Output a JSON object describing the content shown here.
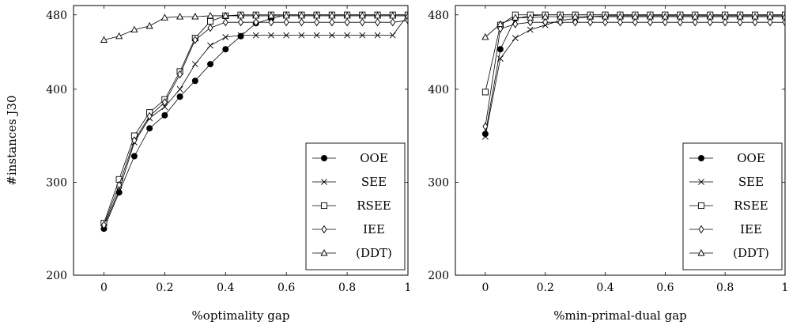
{
  "chart_data": [
    {
      "type": "line",
      "xlabel": "%optimality gap",
      "ylabel": "#instances J30",
      "xlim": [
        -0.1,
        1.0
      ],
      "ylim": [
        200,
        490
      ],
      "xticks": [
        "0",
        "0.2",
        "0.4",
        "0.6",
        "0.8",
        "1"
      ],
      "yticks": [
        "200",
        "300",
        "400",
        "480"
      ],
      "legend_position": "bottom-right",
      "series": [
        {
          "name": "OOE",
          "marker": "filled-circle",
          "x": [
            0,
            0.05,
            0.1,
            0.15,
            0.2,
            0.25,
            0.3,
            0.35,
            0.4,
            0.45,
            0.5,
            0.55,
            0.6,
            0.65,
            0.7,
            0.75,
            0.8,
            0.85,
            0.9,
            0.95,
            1
          ],
          "y": [
            250,
            289,
            328,
            358,
            372,
            392,
            409,
            427,
            443,
            457,
            471,
            476,
            480,
            480,
            480,
            480,
            480,
            480,
            480,
            480,
            480
          ]
        },
        {
          "name": "SEE",
          "marker": "cross",
          "x": [
            0,
            0.05,
            0.1,
            0.15,
            0.2,
            0.25,
            0.3,
            0.35,
            0.4,
            0.45,
            0.5,
            0.55,
            0.6,
            0.65,
            0.7,
            0.75,
            0.8,
            0.85,
            0.9,
            0.95,
            1
          ],
          "y": [
            253,
            291,
            343,
            369,
            381,
            400,
            427,
            447,
            456,
            458,
            458,
            458,
            458,
            458,
            458,
            458,
            458,
            458,
            458,
            458,
            480
          ]
        },
        {
          "name": "RSEE",
          "marker": "open-square",
          "x": [
            0,
            0.05,
            0.1,
            0.15,
            0.2,
            0.25,
            0.3,
            0.35,
            0.4,
            0.45,
            0.5,
            0.55,
            0.6,
            0.65,
            0.7,
            0.75,
            0.8,
            0.85,
            0.9,
            0.95,
            1
          ],
          "y": [
            256,
            303,
            350,
            375,
            389,
            419,
            455,
            473,
            479,
            480,
            480,
            480,
            480,
            480,
            480,
            480,
            480,
            480,
            480,
            480,
            480
          ]
        },
        {
          "name": "IEE",
          "marker": "open-diamond",
          "x": [
            0,
            0.05,
            0.1,
            0.15,
            0.2,
            0.25,
            0.3,
            0.35,
            0.4,
            0.45,
            0.5,
            0.55,
            0.6,
            0.65,
            0.7,
            0.75,
            0.8,
            0.85,
            0.9,
            0.95,
            1
          ],
          "y": [
            254,
            297,
            345,
            371,
            386,
            416,
            453,
            466,
            472,
            472,
            472,
            472,
            472,
            472,
            472,
            472,
            472,
            472,
            472,
            472,
            474
          ]
        },
        {
          "name": "(DDT)",
          "marker": "open-triangle",
          "x": [
            0,
            0.05,
            0.1,
            0.15,
            0.2,
            0.25,
            0.3,
            0.35,
            0.4,
            0.45,
            0.5,
            0.55,
            0.6,
            0.65,
            0.7,
            0.75,
            0.8,
            0.85,
            0.9,
            0.95,
            1
          ],
          "y": [
            453,
            457,
            464,
            468,
            477,
            478,
            478,
            479,
            479,
            479,
            479,
            479,
            479,
            479,
            479,
            479,
            479,
            479,
            479,
            479,
            479
          ]
        }
      ]
    },
    {
      "type": "line",
      "xlabel": "%min-primal-dual gap",
      "ylabel": "",
      "xlim": [
        -0.1,
        1.0
      ],
      "ylim": [
        200,
        490
      ],
      "xticks": [
        "0",
        "0.2",
        "0.4",
        "0.6",
        "0.8",
        "1"
      ],
      "yticks": [
        "200",
        "300",
        "400",
        "480"
      ],
      "legend_position": "bottom-right",
      "series": [
        {
          "name": "OOE",
          "marker": "filled-circle",
          "x": [
            0,
            0.05,
            0.1,
            0.15,
            0.2,
            0.25,
            0.3,
            0.35,
            0.4,
            0.45,
            0.5,
            0.55,
            0.6,
            0.65,
            0.7,
            0.75,
            0.8,
            0.85,
            0.9,
            0.95,
            1
          ],
          "y": [
            352,
            443,
            476,
            479,
            480,
            480,
            480,
            480,
            480,
            480,
            480,
            480,
            480,
            480,
            480,
            480,
            480,
            480,
            480,
            480,
            480
          ]
        },
        {
          "name": "SEE",
          "marker": "cross",
          "x": [
            0,
            0.05,
            0.1,
            0.15,
            0.2,
            0.25,
            0.3,
            0.35,
            0.4,
            0.45,
            0.5,
            0.55,
            0.6,
            0.65,
            0.7,
            0.75,
            0.8,
            0.85,
            0.9,
            0.95,
            1
          ],
          "y": [
            349,
            433,
            455,
            464,
            469,
            474,
            476,
            478,
            479,
            479,
            479,
            479,
            479,
            479,
            479,
            479,
            479,
            479,
            479,
            479,
            479
          ]
        },
        {
          "name": "RSEE",
          "marker": "open-square",
          "x": [
            0,
            0.05,
            0.1,
            0.15,
            0.2,
            0.25,
            0.3,
            0.35,
            0.4,
            0.45,
            0.5,
            0.55,
            0.6,
            0.65,
            0.7,
            0.75,
            0.8,
            0.85,
            0.9,
            0.95,
            1
          ],
          "y": [
            397,
            469,
            480,
            480,
            480,
            480,
            480,
            480,
            480,
            480,
            480,
            480,
            480,
            480,
            480,
            480,
            480,
            480,
            480,
            480,
            480
          ]
        },
        {
          "name": "IEE",
          "marker": "open-diamond",
          "x": [
            0,
            0.05,
            0.1,
            0.15,
            0.2,
            0.25,
            0.3,
            0.35,
            0.4,
            0.45,
            0.5,
            0.55,
            0.6,
            0.65,
            0.7,
            0.75,
            0.8,
            0.85,
            0.9,
            0.95,
            1
          ],
          "y": [
            360,
            465,
            470,
            472,
            472,
            472,
            472,
            472,
            472,
            472,
            472,
            472,
            472,
            472,
            472,
            472,
            472,
            472,
            472,
            472,
            472
          ]
        },
        {
          "name": "(DDT)",
          "marker": "open-triangle",
          "x": [
            0,
            0.05,
            0.1,
            0.15,
            0.2,
            0.25,
            0.3,
            0.35,
            0.4,
            0.45,
            0.5,
            0.55,
            0.6,
            0.65,
            0.7,
            0.75,
            0.8,
            0.85,
            0.9,
            0.95,
            1
          ],
          "y": [
            456,
            470,
            477,
            477,
            478,
            478,
            478,
            478,
            478,
            478,
            478,
            478,
            478,
            478,
            478,
            478,
            478,
            478,
            478,
            478,
            478
          ]
        }
      ]
    }
  ]
}
